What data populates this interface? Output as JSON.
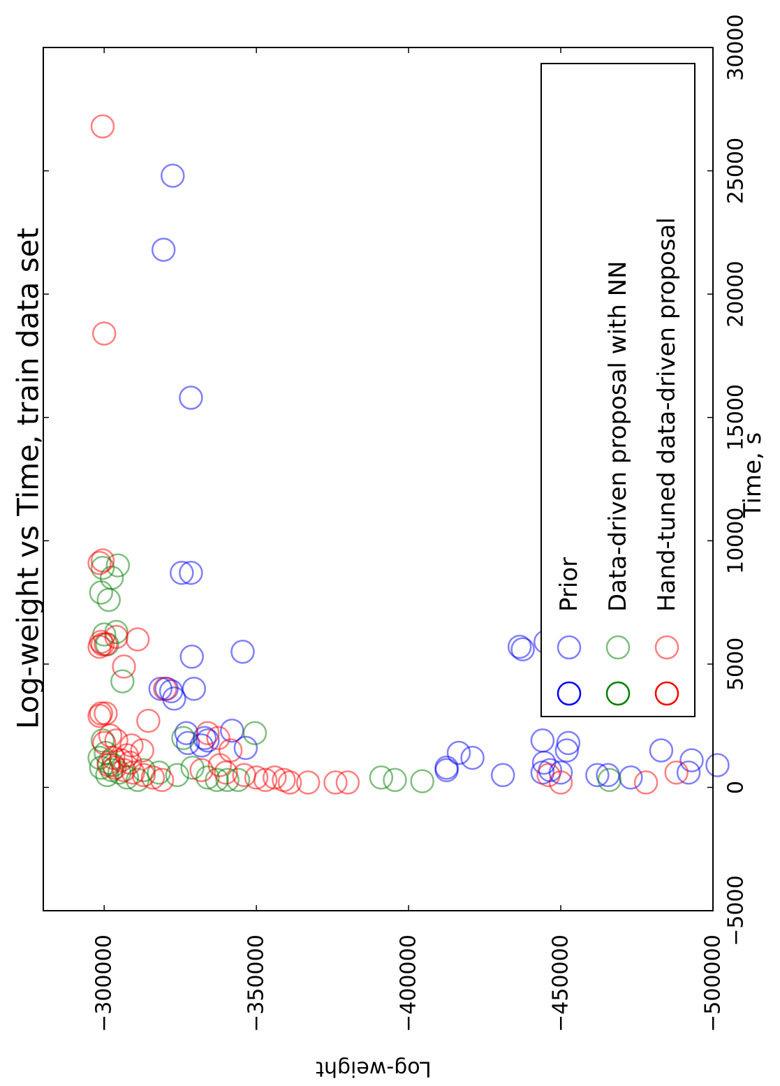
{
  "chart_data": {
    "type": "scatter",
    "title": "Log-weight vs Time, train data set",
    "xlabel": "Time, s",
    "ylabel": "Log-weight",
    "xlim": [
      -5000,
      30000
    ],
    "ylim": [
      -500000,
      -280000
    ],
    "x_ticks": [
      -5000,
      0,
      5000,
      10000,
      15000,
      20000,
      25000,
      30000
    ],
    "x_tick_labels": [
      "−5000",
      "0",
      "5000",
      "10000",
      "15000",
      "20000",
      "25000",
      "30000"
    ],
    "y_ticks": [
      -300000,
      -350000,
      -400000,
      -450000,
      -500000
    ],
    "y_tick_labels": [
      "−300000",
      "−350000",
      "−400000",
      "−450000",
      "−500000"
    ],
    "grid": false,
    "legend_position": "upper right (figure shown rotated 90 degrees)",
    "series": [
      {
        "name": "Prior",
        "color": "#0000ff",
        "points": [
          [
            24800,
            -322500
          ],
          [
            21800,
            -319500
          ],
          [
            15800,
            -328500
          ],
          [
            8700,
            -325500
          ],
          [
            8700,
            -328500
          ],
          [
            5300,
            -328800
          ],
          [
            5500,
            -345500
          ],
          [
            4000,
            -318500
          ],
          [
            4000,
            -320500
          ],
          [
            3900,
            -322000
          ],
          [
            4000,
            -329500
          ],
          [
            3600,
            -323000
          ],
          [
            2200,
            -327000
          ],
          [
            2000,
            -333000
          ],
          [
            1900,
            -334000
          ],
          [
            1700,
            -332000
          ],
          [
            1800,
            -327500
          ],
          [
            2300,
            -342000
          ],
          [
            1600,
            -346500
          ],
          [
            800,
            -412500
          ],
          [
            700,
            -412500
          ],
          [
            1400,
            -416500
          ],
          [
            1200,
            -421000
          ],
          [
            500,
            -431000
          ],
          [
            5700,
            -436500
          ],
          [
            5600,
            -437500
          ],
          [
            5900,
            -445000
          ],
          [
            5600,
            -448000
          ],
          [
            1000,
            -444500
          ],
          [
            600,
            -444000
          ],
          [
            700,
            -446500
          ],
          [
            1900,
            -444000
          ],
          [
            1800,
            -452500
          ],
          [
            1500,
            -452000
          ],
          [
            600,
            -450000
          ],
          [
            500,
            -462000
          ],
          [
            500,
            -465500
          ],
          [
            400,
            -473000
          ],
          [
            1500,
            -483000
          ],
          [
            600,
            -492000
          ],
          [
            1100,
            -493000
          ],
          [
            900,
            -501500
          ]
        ]
      },
      {
        "name": "Data-driven proposal with NN",
        "color": "#008000",
        "points": [
          [
            9000,
            -304500
          ],
          [
            8900,
            -299500
          ],
          [
            8500,
            -302500
          ],
          [
            7900,
            -299000
          ],
          [
            7600,
            -301500
          ],
          [
            6300,
            -304000
          ],
          [
            6200,
            -300000
          ],
          [
            5800,
            -301000
          ],
          [
            4300,
            -306000
          ],
          [
            1900,
            -299500
          ],
          [
            2000,
            -326000
          ],
          [
            2200,
            -349500
          ],
          [
            1400,
            -300500
          ],
          [
            1200,
            -298500
          ],
          [
            1000,
            -301500
          ],
          [
            900,
            -303000
          ],
          [
            800,
            -299000
          ],
          [
            700,
            -302500
          ],
          [
            600,
            -305000
          ],
          [
            500,
            -301000
          ],
          [
            400,
            -307500
          ],
          [
            300,
            -311000
          ],
          [
            700,
            -313000
          ],
          [
            600,
            -318000
          ],
          [
            500,
            -324000
          ],
          [
            800,
            -329000
          ],
          [
            400,
            -334000
          ],
          [
            300,
            -337000
          ],
          [
            300,
            -340500
          ],
          [
            300,
            -344000
          ],
          [
            400,
            -391000
          ],
          [
            300,
            -395500
          ],
          [
            250,
            -404500
          ],
          [
            300,
            -466000
          ]
        ]
      },
      {
        "name": "Hand-tuned data-driven proposal",
        "color": "#ff0000",
        "points": [
          [
            26800,
            -299500
          ],
          [
            18400,
            -300000
          ],
          [
            9200,
            -299500
          ],
          [
            9100,
            -298500
          ],
          [
            6000,
            -311000
          ],
          [
            4900,
            -306500
          ],
          [
            4000,
            -320000
          ],
          [
            6100,
            -304000
          ],
          [
            5900,
            -299000
          ],
          [
            5800,
            -300500
          ],
          [
            5700,
            -298500
          ],
          [
            5800,
            -299500
          ],
          [
            3000,
            -299000
          ],
          [
            3000,
            -300500
          ],
          [
            2900,
            -298500
          ],
          [
            2700,
            -314500
          ],
          [
            2100,
            -302000
          ],
          [
            1900,
            -304000
          ],
          [
            1800,
            -300000
          ],
          [
            1700,
            -309000
          ],
          [
            1500,
            -312500
          ],
          [
            1300,
            -307500
          ],
          [
            1200,
            -303000
          ],
          [
            1100,
            -305500
          ],
          [
            1000,
            -308500
          ],
          [
            900,
            -301500
          ],
          [
            800,
            -303500
          ],
          [
            700,
            -306500
          ],
          [
            600,
            -309500
          ],
          [
            500,
            -313000
          ],
          [
            400,
            -316000
          ],
          [
            300,
            -319000
          ],
          [
            2200,
            -334000
          ],
          [
            2000,
            -337500
          ],
          [
            1500,
            -341500
          ],
          [
            900,
            -338000
          ],
          [
            700,
            -332000
          ],
          [
            600,
            -340000
          ],
          [
            500,
            -346000
          ],
          [
            400,
            -350000
          ],
          [
            300,
            -353000
          ],
          [
            400,
            -356000
          ],
          [
            300,
            -359000
          ],
          [
            200,
            -361000
          ],
          [
            200,
            -367000
          ],
          [
            200,
            -376000
          ],
          [
            200,
            -380000
          ],
          [
            500,
            -446000
          ],
          [
            200,
            -450000
          ],
          [
            200,
            -478000
          ],
          [
            600,
            -488000
          ]
        ]
      }
    ]
  }
}
